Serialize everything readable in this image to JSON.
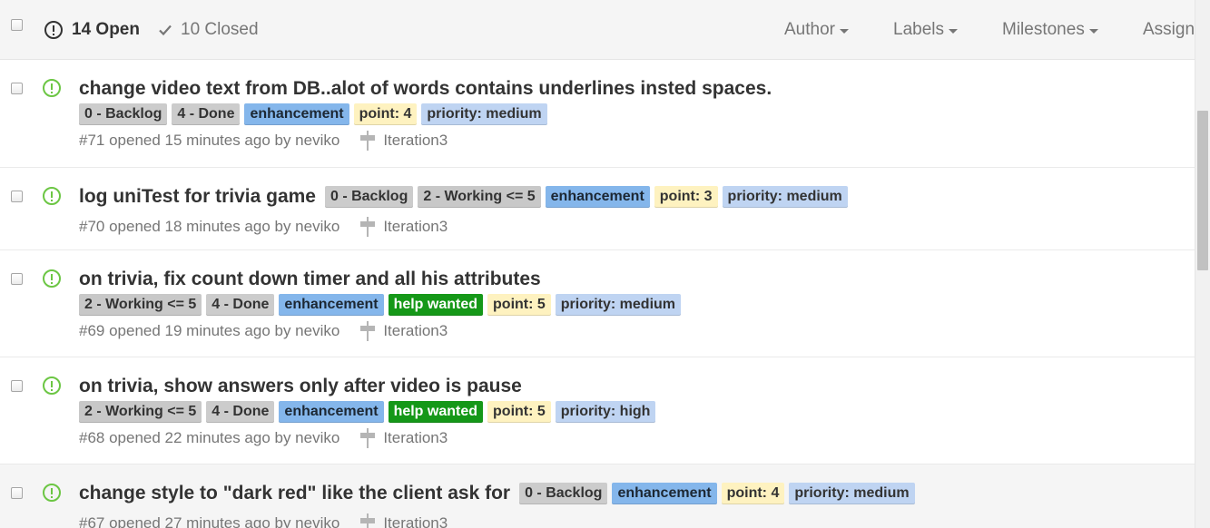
{
  "header": {
    "open_label": "14 Open",
    "closed_label": "10 Closed",
    "filters": {
      "author": "Author",
      "labels": "Labels",
      "milestones": "Milestones",
      "assignee": "Assignee"
    }
  },
  "label_colors": {
    "backlog": {
      "bg": "#cccccc",
      "fg": "#333333"
    },
    "working": {
      "bg": "#c8c8c8",
      "fg": "#333333"
    },
    "done": {
      "bg": "#cccccc",
      "fg": "#333333"
    },
    "enhancement": {
      "bg": "#84b6eb",
      "fg": "#1c2733"
    },
    "help_wanted": {
      "bg": "#159818",
      "fg": "#ffffff"
    },
    "point": {
      "bg": "#fef2c0",
      "fg": "#333333"
    },
    "priority": {
      "bg": "#bfd4f2",
      "fg": "#333333"
    }
  },
  "issues": [
    {
      "title": "change video text from DB..alot of words contains underlines insted spaces.",
      "labels_inline": false,
      "labels": [
        {
          "text": "0 - Backlog",
          "kind": "backlog"
        },
        {
          "text": "4 - Done",
          "kind": "done"
        },
        {
          "text": "enhancement",
          "kind": "enhancement"
        },
        {
          "text": "point: 4",
          "kind": "point"
        },
        {
          "text": "priority: medium",
          "kind": "priority"
        }
      ],
      "meta": "#71 opened 15 minutes ago by neviko",
      "milestone": "Iteration3"
    },
    {
      "title": "log uniTest for trivia game",
      "labels_inline": true,
      "labels": [
        {
          "text": "0 - Backlog",
          "kind": "backlog"
        },
        {
          "text": "2 - Working <= 5",
          "kind": "working"
        },
        {
          "text": "enhancement",
          "kind": "enhancement"
        },
        {
          "text": "point: 3",
          "kind": "point"
        },
        {
          "text": "priority: medium",
          "kind": "priority"
        }
      ],
      "meta": "#70 opened 18 minutes ago by neviko",
      "milestone": "Iteration3"
    },
    {
      "title": "on trivia, fix count down timer and all his attributes",
      "labels_inline": false,
      "labels": [
        {
          "text": "2 - Working <= 5",
          "kind": "working"
        },
        {
          "text": "4 - Done",
          "kind": "done"
        },
        {
          "text": "enhancement",
          "kind": "enhancement"
        },
        {
          "text": "help wanted",
          "kind": "help_wanted"
        },
        {
          "text": "point: 5",
          "kind": "point"
        },
        {
          "text": "priority: medium",
          "kind": "priority"
        }
      ],
      "meta": "#69 opened 19 minutes ago by neviko",
      "milestone": "Iteration3"
    },
    {
      "title": "on trivia, show answers only after video is pause",
      "labels_inline": false,
      "labels": [
        {
          "text": "2 - Working <= 5",
          "kind": "working"
        },
        {
          "text": "4 - Done",
          "kind": "done"
        },
        {
          "text": "enhancement",
          "kind": "enhancement"
        },
        {
          "text": "help wanted",
          "kind": "help_wanted"
        },
        {
          "text": "point: 5",
          "kind": "point"
        },
        {
          "text": "priority: high",
          "kind": "priority"
        }
      ],
      "meta": "#68 opened 22 minutes ago by neviko",
      "milestone": "Iteration3"
    },
    {
      "title": "change style to \"dark red\" like the client ask for",
      "labels_inline": true,
      "hover": true,
      "labels": [
        {
          "text": "0 - Backlog",
          "kind": "backlog"
        },
        {
          "text": "enhancement",
          "kind": "enhancement"
        },
        {
          "text": "point: 4",
          "kind": "point"
        },
        {
          "text": "priority: medium",
          "kind": "priority"
        }
      ],
      "meta": "#67 opened 27 minutes ago by neviko",
      "milestone": "Iteration3"
    }
  ]
}
